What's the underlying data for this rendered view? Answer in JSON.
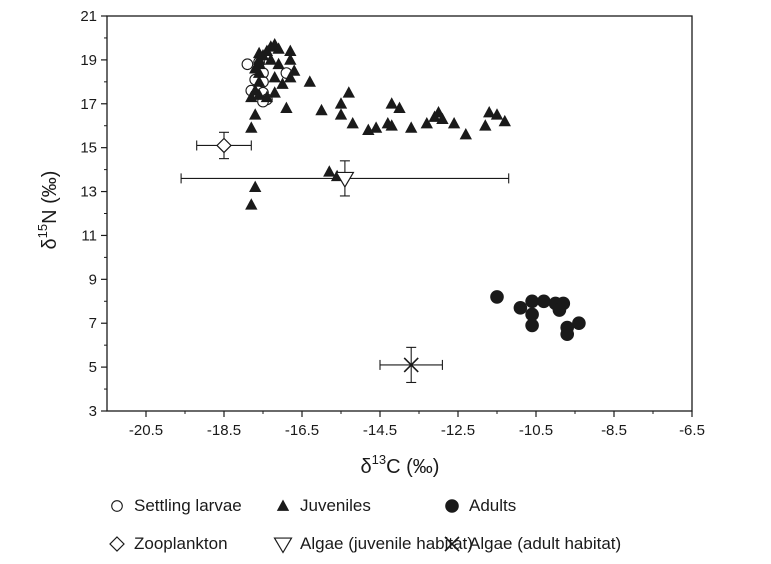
{
  "chart_data": {
    "type": "scatter",
    "xlabel": {
      "prefix": "δ",
      "sup": "13",
      "main": "C (‰)"
    },
    "ylabel": {
      "prefix": "δ",
      "sup": "15",
      "main": "N (‰)"
    },
    "xlim": [
      -21.5,
      -6.5
    ],
    "ylim": [
      3,
      21
    ],
    "xticks": [
      -20.5,
      -18.5,
      -16.5,
      -14.5,
      -12.5,
      -10.5,
      -8.5,
      -6.5
    ],
    "xtick_labels": [
      "-20.5",
      "-18.5",
      "-16.5",
      "-14.5",
      "-12.5",
      "-10.5",
      "-8.5",
      "-6.5"
    ],
    "yticks": [
      3,
      5,
      7,
      9,
      11,
      13,
      15,
      17,
      19,
      21
    ],
    "ytick_labels": [
      "3",
      "5",
      "7",
      "9",
      "11",
      "13",
      "15",
      "17",
      "19",
      "21"
    ],
    "grid": false,
    "legend_position": "bottom",
    "series": [
      {
        "name": "Settling larvae",
        "marker": "open-circle",
        "points": [
          [
            -17.9,
            18.8
          ],
          [
            -17.6,
            18.6
          ],
          [
            -17.5,
            18.4
          ],
          [
            -17.7,
            18.1
          ],
          [
            -17.6,
            17.7
          ],
          [
            -17.5,
            17.5
          ],
          [
            -17.4,
            17.2
          ],
          [
            -17.5,
            17.1
          ],
          [
            -17.8,
            17.6
          ],
          [
            -17.5,
            18.0
          ],
          [
            -16.9,
            18.4
          ],
          [
            -17.6,
            18.9
          ]
        ]
      },
      {
        "name": "Juveniles",
        "marker": "filled-triangle",
        "points": [
          [
            -17.8,
            12.4
          ],
          [
            -17.7,
            13.2
          ],
          [
            -17.8,
            15.9
          ],
          [
            -17.7,
            16.5
          ],
          [
            -17.8,
            17.3
          ],
          [
            -17.6,
            17.4
          ],
          [
            -17.7,
            17.6
          ],
          [
            -17.6,
            18.0
          ],
          [
            -17.6,
            18.4
          ],
          [
            -17.7,
            18.6
          ],
          [
            -17.6,
            18.8
          ],
          [
            -17.6,
            19.0
          ],
          [
            -17.5,
            19.2
          ],
          [
            -17.4,
            19.4
          ],
          [
            -17.6,
            19.3
          ],
          [
            -17.3,
            19.6
          ],
          [
            -17.2,
            19.7
          ],
          [
            -17.1,
            19.5
          ],
          [
            -17.3,
            19.0
          ],
          [
            -17.1,
            18.8
          ],
          [
            -17.2,
            18.2
          ],
          [
            -17.0,
            17.9
          ],
          [
            -17.2,
            17.5
          ],
          [
            -17.4,
            17.3
          ],
          [
            -16.9,
            16.8
          ],
          [
            -16.8,
            18.2
          ],
          [
            -16.7,
            18.5
          ],
          [
            -16.8,
            19.0
          ],
          [
            -16.8,
            19.4
          ],
          [
            -16.3,
            18.0
          ],
          [
            -16.0,
            16.7
          ],
          [
            -15.5,
            17.0
          ],
          [
            -15.3,
            17.5
          ],
          [
            -15.5,
            16.5
          ],
          [
            -15.2,
            16.1
          ],
          [
            -14.8,
            15.8
          ],
          [
            -14.6,
            15.9
          ],
          [
            -14.3,
            16.1
          ],
          [
            -14.2,
            17.0
          ],
          [
            -14.0,
            16.8
          ],
          [
            -14.2,
            16.0
          ],
          [
            -13.7,
            15.9
          ],
          [
            -13.3,
            16.1
          ],
          [
            -13.1,
            16.4
          ],
          [
            -13.0,
            16.6
          ],
          [
            -12.9,
            16.3
          ],
          [
            -12.6,
            16.1
          ],
          [
            -12.3,
            15.6
          ],
          [
            -11.8,
            16.0
          ],
          [
            -11.7,
            16.6
          ],
          [
            -11.5,
            16.5
          ],
          [
            -11.3,
            16.2
          ],
          [
            -15.8,
            13.9
          ],
          [
            -15.6,
            13.7
          ]
        ]
      },
      {
        "name": "Adults",
        "marker": "filled-circle",
        "points": [
          [
            -11.5,
            8.2
          ],
          [
            -10.9,
            7.7
          ],
          [
            -10.6,
            8.0
          ],
          [
            -10.3,
            8.0
          ],
          [
            -10.0,
            7.9
          ],
          [
            -9.8,
            7.9
          ],
          [
            -10.6,
            7.4
          ],
          [
            -10.6,
            6.9
          ],
          [
            -9.9,
            7.6
          ],
          [
            -9.7,
            6.8
          ],
          [
            -9.4,
            7.0
          ],
          [
            -9.7,
            6.5
          ]
        ]
      },
      {
        "name": "Zooplankton",
        "marker": "open-diamond",
        "points": [
          [
            -18.5,
            15.1
          ]
        ],
        "xerr": [
          0.7
        ],
        "yerr": [
          0.6
        ]
      },
      {
        "name": "Algae (juvenile habitat)",
        "marker": "open-inverted-triangle",
        "points": [
          [
            -15.4,
            13.6
          ]
        ],
        "xerr": [
          4.2
        ],
        "yerr": [
          0.8
        ]
      },
      {
        "name": "Algae (adult habitat)",
        "marker": "cross",
        "points": [
          [
            -13.7,
            5.1
          ]
        ],
        "xerr": [
          0.8
        ],
        "yerr": [
          0.8
        ]
      }
    ]
  },
  "colors": {
    "ink": "#1a1a1a",
    "background": "#ffffff"
  }
}
